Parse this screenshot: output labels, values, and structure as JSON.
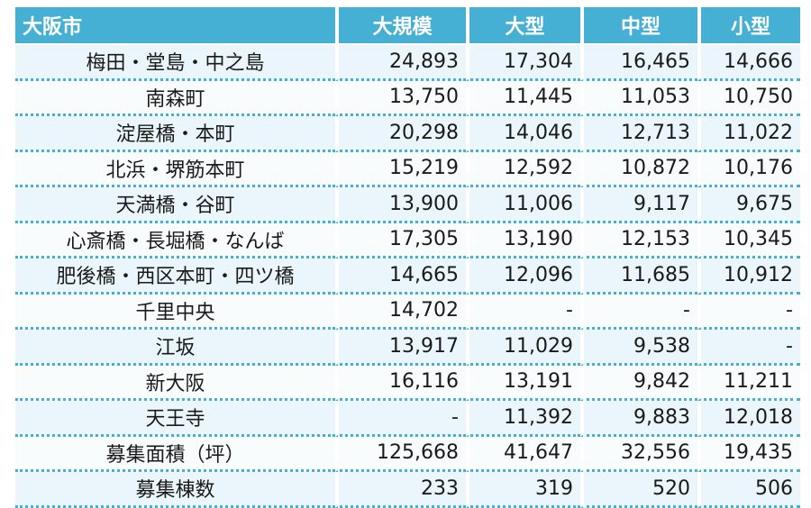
{
  "table": {
    "headers": [
      "大阪市",
      "大規模",
      "大型",
      "中型",
      "小型"
    ],
    "rows": [
      {
        "label": "梅田・堂島・中之島",
        "values": [
          "24,893",
          "17,304",
          "16,465",
          "14,666"
        ]
      },
      {
        "label": "南森町",
        "values": [
          "13,750",
          "11,445",
          "11,053",
          "10,750"
        ]
      },
      {
        "label": "淀屋橋・本町",
        "values": [
          "20,298",
          "14,046",
          "12,713",
          "11,022"
        ]
      },
      {
        "label": "北浜・堺筋本町",
        "values": [
          "15,219",
          "12,592",
          "10,872",
          "10,176"
        ]
      },
      {
        "label": "天満橋・谷町",
        "values": [
          "13,900",
          "11,006",
          "9,117",
          "9,675"
        ]
      },
      {
        "label": "心斎橋・長堀橋・なんば",
        "values": [
          "17,305",
          "13,190",
          "12,153",
          "10,345"
        ]
      },
      {
        "label": "肥後橋・西区本町・四ツ橋",
        "values": [
          "14,665",
          "12,096",
          "11,685",
          "10,912"
        ]
      },
      {
        "label": "千里中央",
        "values": [
          "14,702",
          "-",
          "-",
          "-"
        ]
      },
      {
        "label": "江坂",
        "values": [
          "13,917",
          "11,029",
          "9,538",
          "-"
        ]
      },
      {
        "label": "新大阪",
        "values": [
          "16,116",
          "13,191",
          "9,842",
          "11,211"
        ]
      },
      {
        "label": "天王寺",
        "values": [
          "-",
          "11,392",
          "9,883",
          "12,018"
        ]
      },
      {
        "label": "募集面積（坪）",
        "values": [
          "125,668",
          "41,647",
          "32,556",
          "19,435"
        ]
      },
      {
        "label": "募集棟数",
        "values": [
          "233",
          "319",
          "520",
          "506"
        ]
      }
    ]
  }
}
